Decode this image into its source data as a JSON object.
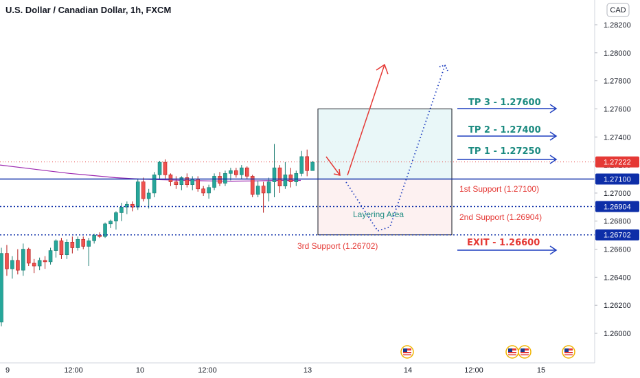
{
  "chart_data": {
    "type": "candlestick",
    "title": "U.S. Dollar / Canadian Dollar, 1h, FXCM",
    "currency": "CAD",
    "ylim": [
      1.2584,
      1.2838
    ],
    "price_ticks": [
      "1.28200",
      "1.28000",
      "1.27800",
      "1.27600",
      "1.27400",
      "1.27200",
      "1.27000",
      "1.26800",
      "1.26600",
      "1.26400",
      "1.26200",
      "1.26000"
    ],
    "time_ticks": [
      "9",
      "12:00",
      "10",
      "12:00",
      "13",
      "14",
      "12:00",
      "15"
    ],
    "price_labels": [
      {
        "value": 1.27222,
        "text": "1.27222",
        "color": "#e53935"
      },
      {
        "value": 1.271,
        "text": "1.27100",
        "color": "#0d2ea8"
      },
      {
        "value": 1.26904,
        "text": "1.26904",
        "color": "#0d2ea8"
      },
      {
        "value": 1.26702,
        "text": "1.26702",
        "color": "#0d2ea8"
      }
    ],
    "current_price": 1.27222,
    "levels": [
      {
        "name": "1st Support",
        "value": 1.271,
        "style": "solid",
        "color": "#0d2ea8"
      },
      {
        "name": "2nd Support",
        "value": 1.26904,
        "style": "dotted",
        "color": "#0d2ea8"
      },
      {
        "name": "3rd Support",
        "value": 1.26702,
        "style": "dotted",
        "color": "#0d2ea8"
      }
    ],
    "annotations": {
      "tp3": "TP 3 - 1.27600",
      "tp2": "TP 2 - 1.27400",
      "tp1": "TP 1 - 1.27250",
      "exit": "EXIT - 1.26600",
      "support1": "1st Support (1.27100)",
      "support2": "2nd Support (1.26904)",
      "support3": "3rd Support (1.26702)",
      "layering": "Layering Area"
    },
    "target_box": {
      "top": 1.276,
      "bottom": 1.271
    },
    "layer_box": {
      "top": 1.271,
      "bottom": 1.26702
    },
    "ma": [
      1.272,
      1.2718,
      1.2716,
      1.2714,
      1.27125,
      1.2711,
      1.271,
      1.27095,
      1.2709,
      1.27087,
      1.27085,
      1.27087,
      1.2709,
      1.2709
    ],
    "candles": [
      [
        1.2608,
        1.2661,
        1.2605,
        1.2657
      ],
      [
        1.2657,
        1.2663,
        1.2641,
        1.2646
      ],
      [
        1.2646,
        1.2655,
        1.2639,
        1.2652
      ],
      [
        1.2652,
        1.266,
        1.2642,
        1.2645
      ],
      [
        1.2645,
        1.2664,
        1.2641,
        1.266
      ],
      [
        1.266,
        1.2661,
        1.2648,
        1.265
      ],
      [
        1.265,
        1.2653,
        1.2643,
        1.2648
      ],
      [
        1.2648,
        1.2654,
        1.2645,
        1.2652
      ],
      [
        1.2652,
        1.2655,
        1.2646,
        1.2651
      ],
      [
        1.2651,
        1.2661,
        1.2649,
        1.2659
      ],
      [
        1.2659,
        1.2667,
        1.2654,
        1.2666
      ],
      [
        1.2666,
        1.2668,
        1.2653,
        1.2656
      ],
      [
        1.2656,
        1.2667,
        1.2653,
        1.2665
      ],
      [
        1.2665,
        1.2669,
        1.2657,
        1.2661
      ],
      [
        1.2661,
        1.2669,
        1.2659,
        1.2667
      ],
      [
        1.2667,
        1.2669,
        1.266,
        1.2662
      ],
      [
        1.2662,
        1.2668,
        1.2648,
        1.2666
      ],
      [
        1.2666,
        1.2671,
        1.2664,
        1.267
      ],
      [
        1.267,
        1.2672,
        1.2668,
        1.2669
      ],
      [
        1.2669,
        1.2679,
        1.2668,
        1.2678
      ],
      [
        1.2678,
        1.2681,
        1.2675,
        1.268
      ],
      [
        1.268,
        1.2687,
        1.2674,
        1.2686
      ],
      [
        1.2686,
        1.2693,
        1.268,
        1.269
      ],
      [
        1.269,
        1.2694,
        1.2685,
        1.2692
      ],
      [
        1.2692,
        1.2694,
        1.2687,
        1.269
      ],
      [
        1.269,
        1.271,
        1.2688,
        1.2708
      ],
      [
        1.2708,
        1.2711,
        1.2694,
        1.2696
      ],
      [
        1.2696,
        1.2703,
        1.2689,
        1.27
      ],
      [
        1.27,
        1.2715,
        1.2697,
        1.2713
      ],
      [
        1.2713,
        1.2723,
        1.271,
        1.2722
      ],
      [
        1.2722,
        1.2724,
        1.271,
        1.2713
      ],
      [
        1.2713,
        1.2714,
        1.2705,
        1.2708
      ],
      [
        1.2708,
        1.2712,
        1.2703,
        1.2706
      ],
      [
        1.2706,
        1.2712,
        1.2702,
        1.2711
      ],
      [
        1.2711,
        1.2714,
        1.2704,
        1.2706
      ],
      [
        1.2706,
        1.2712,
        1.2702,
        1.271
      ],
      [
        1.271,
        1.2712,
        1.2701,
        1.2703
      ],
      [
        1.2703,
        1.2705,
        1.2698,
        1.27
      ],
      [
        1.27,
        1.2706,
        1.2696,
        1.2704
      ],
      [
        1.2704,
        1.2714,
        1.2702,
        1.2712
      ],
      [
        1.2712,
        1.2715,
        1.2705,
        1.2707
      ],
      [
        1.2707,
        1.2716,
        1.2705,
        1.2714
      ],
      [
        1.2714,
        1.2718,
        1.2709,
        1.2716
      ],
      [
        1.2716,
        1.2718,
        1.2711,
        1.2713
      ],
      [
        1.2713,
        1.272,
        1.271,
        1.2718
      ],
      [
        1.2718,
        1.2719,
        1.271,
        1.2712
      ],
      [
        1.2712,
        1.2713,
        1.2697,
        1.2699
      ],
      [
        1.2699,
        1.2709,
        1.2697,
        1.2705
      ],
      [
        1.2705,
        1.2708,
        1.2686,
        1.27
      ],
      [
        1.27,
        1.2711,
        1.2694,
        1.2708
      ],
      [
        1.2708,
        1.2735,
        1.2697,
        1.2718
      ],
      [
        1.2718,
        1.272,
        1.27,
        1.2705
      ],
      [
        1.2705,
        1.2722,
        1.2703,
        1.2713
      ],
      [
        1.2713,
        1.2718,
        1.2704,
        1.2708
      ],
      [
        1.2708,
        1.2716,
        1.2705,
        1.2714
      ],
      [
        1.2714,
        1.273,
        1.2712,
        1.2726
      ],
      [
        1.2726,
        1.2731,
        1.2712,
        1.2716
      ],
      [
        1.2716,
        1.2723,
        1.2716,
        1.2722
      ]
    ],
    "events": {
      "icon": "us-flag-event-icon",
      "count": 4
    }
  }
}
